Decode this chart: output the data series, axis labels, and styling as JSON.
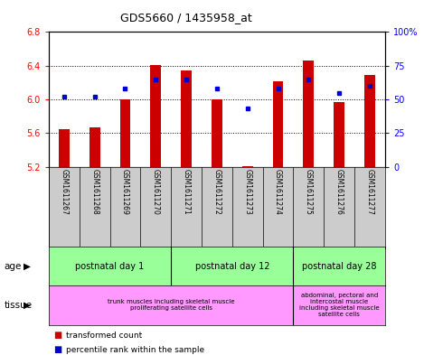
{
  "title": "GDS5660 / 1435958_at",
  "samples": [
    "GSM1611267",
    "GSM1611268",
    "GSM1611269",
    "GSM1611270",
    "GSM1611271",
    "GSM1611272",
    "GSM1611273",
    "GSM1611274",
    "GSM1611275",
    "GSM1611276",
    "GSM1611277"
  ],
  "transformed_count": [
    5.65,
    5.67,
    6.0,
    6.41,
    6.34,
    6.0,
    5.21,
    6.22,
    6.46,
    5.97,
    6.29
  ],
  "percentile_rank": [
    52,
    52,
    58,
    65,
    65,
    58,
    43,
    58,
    65,
    55,
    60
  ],
  "ylim_left": [
    5.2,
    6.8
  ],
  "ylim_right": [
    0,
    100
  ],
  "yticks_left": [
    5.2,
    5.6,
    6.0,
    6.4,
    6.8
  ],
  "yticks_right": [
    0,
    25,
    50,
    75,
    100
  ],
  "ytick_labels_right": [
    "0",
    "25",
    "50",
    "75",
    "100%"
  ],
  "bar_color": "#cc0000",
  "dot_color": "#0000cc",
  "bar_bottom": 5.2,
  "age_groups": [
    {
      "label": "postnatal day 1",
      "start": 0,
      "end": 3
    },
    {
      "label": "postnatal day 12",
      "start": 4,
      "end": 7
    },
    {
      "label": "postnatal day 28",
      "start": 8,
      "end": 10
    }
  ],
  "tissue_groups": [
    {
      "label": "trunk muscles including skeletal muscle\nproliferating satellite cells",
      "start": 0,
      "end": 7
    },
    {
      "label": "abdominal, pectoral and\nintercostal muscle\nincluding skeletal muscle\nsatellite cells",
      "start": 8,
      "end": 10
    }
  ],
  "age_color": "#99ff99",
  "tissue_color": "#ff99ff",
  "tick_area_color": "#cccccc",
  "legend_red": "transformed count",
  "legend_blue": "percentile rank within the sample",
  "bar_width": 0.35,
  "n_samples": 11
}
